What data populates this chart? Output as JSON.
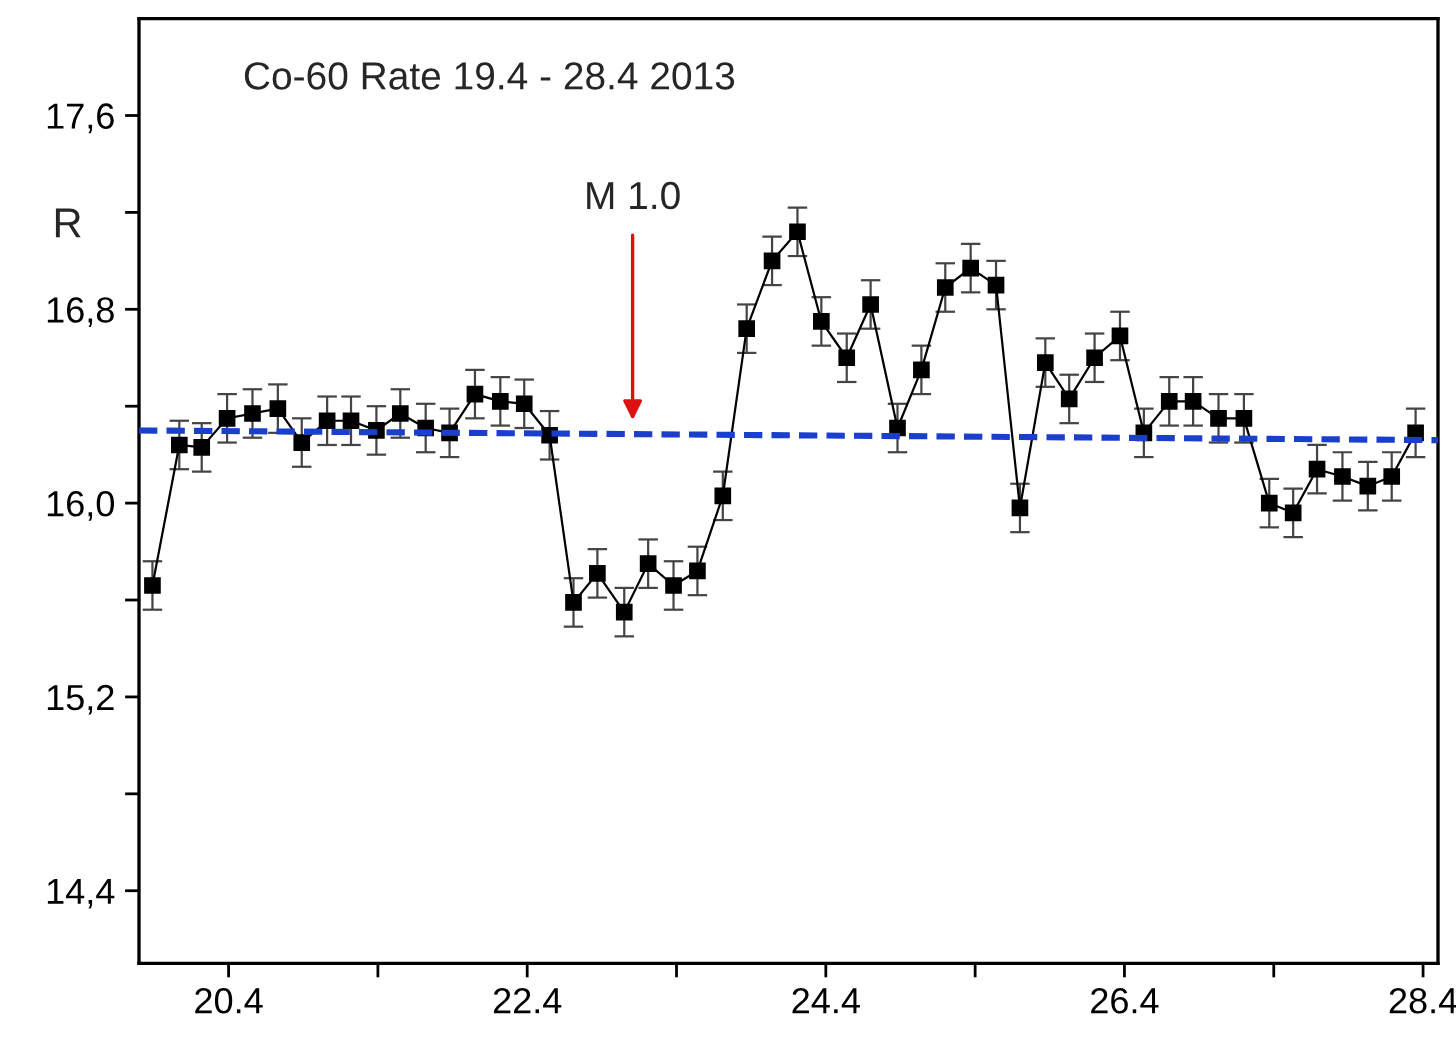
{
  "chart_data": {
    "type": "line",
    "title": "Co-60 Rate 19.4 - 28.4 2013",
    "ylabel": "R",
    "annotations": [
      "M 1.0"
    ],
    "series": [
      {
        "color": "#000000",
        "marker": "square",
        "line_style": "solid",
        "x": [
          19.89,
          20.07,
          20.22,
          20.39,
          20.56,
          20.73,
          20.89,
          21.06,
          21.22,
          21.39,
          21.55,
          21.72,
          21.88,
          22.05,
          22.22,
          22.38,
          22.55,
          22.71,
          22.87,
          23.05,
          23.21,
          23.38,
          23.54,
          23.71,
          23.87,
          24.04,
          24.21,
          24.37,
          24.54,
          24.7,
          24.88,
          25.04,
          25.2,
          25.37,
          25.54,
          25.7,
          25.87,
          26.03,
          26.2,
          26.37,
          26.53,
          26.7,
          26.86,
          27.03,
          27.2,
          27.37,
          27.53,
          27.69,
          27.86,
          28.03,
          28.19,
          28.35
        ],
        "values": [
          15.66,
          16.24,
          16.23,
          16.35,
          16.37,
          16.39,
          16.25,
          16.34,
          16.34,
          16.3,
          16.37,
          16.31,
          16.29,
          16.45,
          16.42,
          16.41,
          16.28,
          15.59,
          15.71,
          15.55,
          15.75,
          15.66,
          15.72,
          16.03,
          16.72,
          17.0,
          17.12,
          16.75,
          16.6,
          16.82,
          16.31,
          16.55,
          16.89,
          16.97,
          16.9,
          15.98,
          16.58,
          16.43,
          16.6,
          16.69,
          16.29,
          16.42,
          16.42,
          16.35,
          16.35,
          16.0,
          15.96,
          16.14,
          16.11,
          16.07,
          16.11,
          16.29
        ],
        "errors": [
          0.1,
          0.1,
          0.1,
          0.1,
          0.1,
          0.1,
          0.1,
          0.1,
          0.1,
          0.1,
          0.1,
          0.1,
          0.1,
          0.1,
          0.1,
          0.1,
          0.1,
          0.1,
          0.1,
          0.1,
          0.1,
          0.1,
          0.1,
          0.1,
          0.1,
          0.1,
          0.1,
          0.1,
          0.1,
          0.1,
          0.1,
          0.1,
          0.1,
          0.1,
          0.1,
          0.1,
          0.1,
          0.1,
          0.1,
          0.1,
          0.1,
          0.1,
          0.1,
          0.1,
          0.1,
          0.1,
          0.1,
          0.1,
          0.1,
          0.1,
          0.1,
          0.1
        ]
      },
      {
        "color": "#1a3fcc",
        "marker": "none",
        "line_style": "dashed",
        "x": [
          19.8,
          28.5
        ],
        "values": [
          16.3,
          16.26
        ]
      }
    ],
    "xlim": [
      19.8,
      28.5
    ],
    "xticks": [
      {
        "value": 20.4,
        "label": "20.4"
      },
      {
        "value": 21.4,
        "label": null
      },
      {
        "value": 22.4,
        "label": "22.4"
      },
      {
        "value": 23.4,
        "label": null
      },
      {
        "value": 24.4,
        "label": "24.4"
      },
      {
        "value": 25.4,
        "label": null
      },
      {
        "value": 26.4,
        "label": "26.4"
      },
      {
        "value": 27.4,
        "label": null
      },
      {
        "value": 28.4,
        "label": "28.4"
      }
    ],
    "ylim": [
      14.1,
      18.0
    ],
    "yticks": [
      {
        "value": 14.4,
        "label": "14,4"
      },
      {
        "value": 14.8,
        "label": null
      },
      {
        "value": 15.2,
        "label": "15,2"
      },
      {
        "value": 15.6,
        "label": null
      },
      {
        "value": 16.0,
        "label": "16,0"
      },
      {
        "value": 16.4,
        "label": null
      },
      {
        "value": 16.8,
        "label": "16,8"
      },
      {
        "value": 17.2,
        "label": null
      },
      {
        "value": 17.6,
        "label": "17,6"
      }
    ],
    "grid": false,
    "legend": false
  }
}
